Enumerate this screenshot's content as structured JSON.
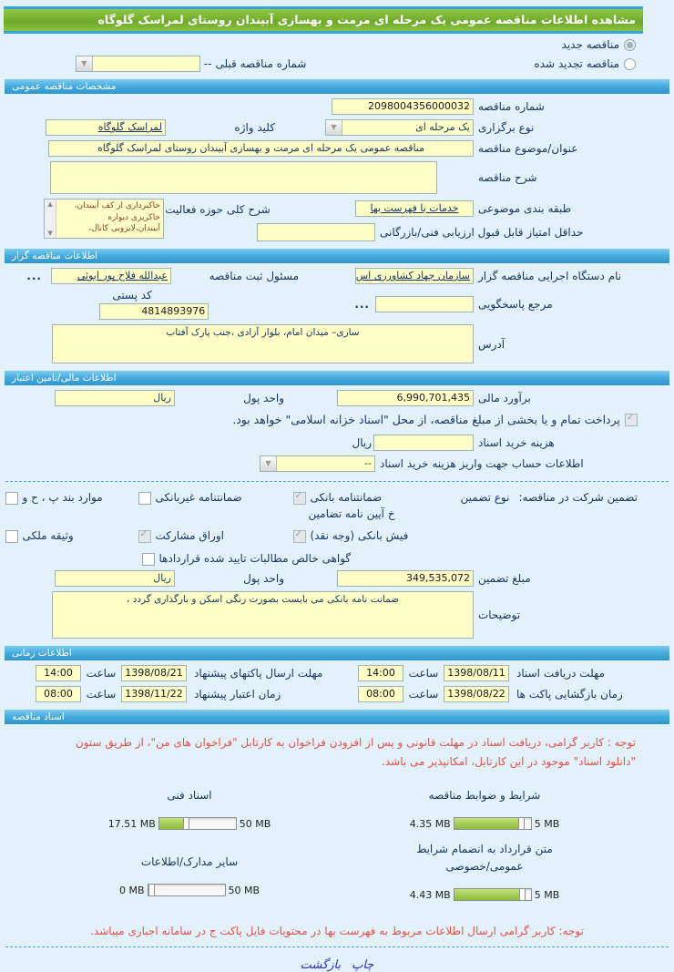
{
  "page": {
    "title": "مشاهده اطلاعات مناقصه عمومی یک مرحله ای مرمت و بهسازی آبیندان روستای لمراسک گلوگاه"
  },
  "radios": {
    "new_tender": {
      "label": "مناقصه جدید",
      "selected": true
    },
    "renewed_tender": {
      "label": "مناقصه تجدید شده",
      "selected": false
    },
    "prev_number_label": "شماره مناقصه قبلی",
    "prev_number_value": "--"
  },
  "sections": {
    "general": "مشخصات مناقصه عمومی",
    "bidder": "اطلاعات مناقصه گزار",
    "financial": "اطلاعات مالی/تامین اعتبار",
    "timing": "اطلاعات زمانی",
    "documents": "اسناد مناقصه"
  },
  "general": {
    "number_label": "شماره مناقصه",
    "number_value": "2098004356000032",
    "type_label": "نوع برگزاری",
    "type_value": "یک مرحله ای",
    "keyword_label": "کلید واژه",
    "keyword_value": "لمراسک گلوگاه",
    "subject_label": "عنوان/موضوع مناقصه",
    "subject_value": "مناقصه عمومی یک مرحله ای مرمت و بهسازی آبیندان روستای لمراسک گلوگاه",
    "description_label": "شرح مناقصه",
    "description_value": "",
    "category_label": "طبقه بندی موضوعی",
    "category_value": "خدمات با فهرست بها",
    "activity_label": "شرح کلی حوزه فعالیت",
    "activity_lines": [
      "خاکبرداری از کف آبیندان،",
      "خاکریزی دیواره",
      "آبیندان،لایروبی کانال،"
    ],
    "min_score_label": "حداقل امتیاز قابل قبول ارزیابی فنی/بازرگانی",
    "min_score_value": ""
  },
  "bidder": {
    "agency_label": "نام دستگاه اجرایی مناقصه گزار",
    "agency_value": "سازمان جهاد کشاورزی اس",
    "registrar_label": "مسئول ثبت مناقصه",
    "registrar_value": "عبدالله فلاح پور ابوئی",
    "registrar_more": "...",
    "contact_label": "مرجع پاسخگویی",
    "contact_value": "",
    "contact_more": "...",
    "postal_label": "کد پستی",
    "postal_value": "4814893976",
    "address_label": "آدرس",
    "address_value": "ساری– میدان امام، بلوار آزادی ،جنب پارک آفتاب"
  },
  "financial": {
    "estimate_label": "برآورد مالی",
    "estimate_value": "6,990,701,435",
    "currency_label": "واحد پول",
    "currency_value": "ریال",
    "treasury": {
      "label": "پرداخت تمام و یا بخشی از مبلغ مناقصه، از محل \"اسناد خزانه اسلامی\" خواهد بود.",
      "checked": true,
      "disabled": true
    },
    "doc_fee_label": "هزینه خرید اسناد",
    "doc_fee_value": "",
    "doc_fee_currency": "ریال",
    "account_label": "اطلاعات حساب جهت واریز هزینه خرید اسناد",
    "account_value": "--"
  },
  "guarantee": {
    "group_label": "تضمین شرکت در مناقصه:",
    "type_label": "نوع تضمین",
    "options": [
      {
        "label": "ضمانتنامه بانکی",
        "label2": "خ آیین نامه تضامین",
        "checked": true,
        "disabled": true
      },
      {
        "label": "ضمانتنامه غیربانکی",
        "checked": false,
        "disabled": false
      },
      {
        "label": "موارد بند پ ، ح و",
        "checked": false,
        "disabled": false
      },
      {
        "label": "فیش بانکی (وجه نقد)",
        "checked": true,
        "disabled": true
      },
      {
        "label": "اوراق مشارکت",
        "checked": true,
        "disabled": true
      },
      {
        "label": "وثیقه ملکی",
        "checked": false,
        "disabled": false
      },
      {
        "label": "گواهی خالص مطالبات تایید شده قراردادها",
        "checked": false,
        "disabled": false
      }
    ],
    "amount_label": "مبلغ تضمین",
    "amount_value": "349,535,072",
    "currency_label": "واحد پول",
    "currency_value": "ریال",
    "notes_label": "توضیحات",
    "notes_value": "ضمانت نامه بانکی می بایست بصورت رنگی اسکن و بارگذاری گردد ،"
  },
  "timing": {
    "hour_label": "ساعت",
    "rows": [
      {
        "cells": [
          {
            "label": "مهلت دریافت اسناد",
            "date": "1398/08/11",
            "time": "14:00"
          },
          {
            "label": "مهلت ارسال پاکتهای پیشنهاد",
            "date": "1398/08/21",
            "time": "14:00"
          }
        ]
      },
      {
        "cells": [
          {
            "label": "زمان بازگشایی پاکت ها",
            "date": "1398/08/22",
            "time": "08:00"
          },
          {
            "label": "زمان اعتبار پیشنهاد",
            "date": "1398/11/22",
            "time": "08:00"
          }
        ]
      }
    ]
  },
  "documents": {
    "notice1": "توجه : کاربر گرامی، دریافت اسناد در مهلت قانونی و پس از افزودن فراخوان به کارتابل \"فراخوان های من\"، از طریق ستون \"دانلود اسناد\" موجود در این کارتابل، امکانپذیر می باشد.",
    "items": [
      {
        "title": "شرایط و ضوابط مناقصه",
        "used": "4.35 MB",
        "max": "5 MB",
        "percent": 87
      },
      {
        "title": "اسناد فنی",
        "used": "17.51 MB",
        "max": "50 MB",
        "percent": 35
      },
      {
        "title": "متن قرارداد به انضمام شرایط عمومی/خصوصی",
        "used": "4.43 MB",
        "max": "5 MB",
        "percent": 89
      },
      {
        "title": "سایر مدارک/اطلاعات",
        "used": "0 MB",
        "max": "50 MB",
        "percent": 0
      }
    ],
    "notice2": "توجه: کاربر گرامی ارسال اطلاعات مربوط به فهرست بها در محتویات فایل پاکت ج در سامانه اجباری میباشد."
  },
  "footer": {
    "print": "چاپ",
    "back": "بازگشت"
  },
  "colors": {
    "header_green": "#7cb82f",
    "section_blue": "#3da8e0",
    "input_bg": "#ffffc8",
    "red_notice": "#e2524b",
    "bar_green": "#8abb3c"
  }
}
